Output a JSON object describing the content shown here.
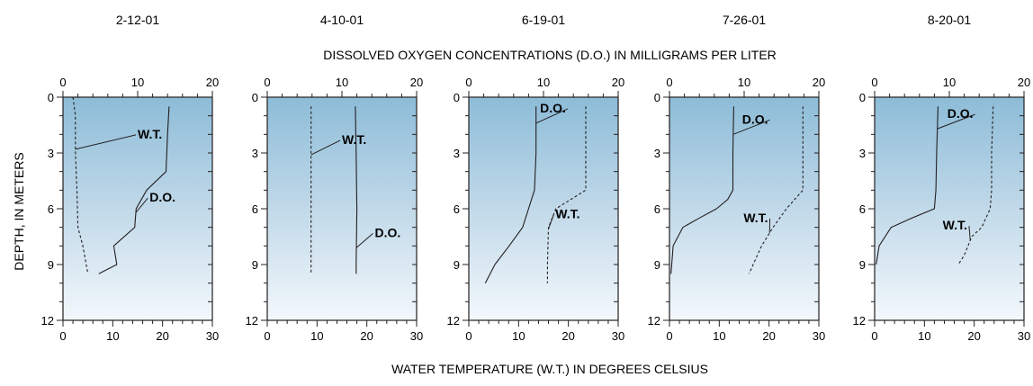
{
  "chart_data": {
    "type": "line",
    "top_axis_label": "DISSOLVED OXYGEN CONCENTRATIONS (D.O.) IN MILLIGRAMS PER LITER",
    "bottom_axis_label": "WATER TEMPERATURE (W.T.) IN DEGREES CELSIUS",
    "ylabel": "DEPTH, IN METERS",
    "do_ticks": [
      "0",
      "10",
      "20"
    ],
    "wt_ticks": [
      "0",
      "10",
      "20",
      "30"
    ],
    "depth_ticks": [
      "0",
      "3",
      "6",
      "9",
      "12"
    ],
    "do_range": [
      0,
      20
    ],
    "wt_range": [
      0,
      30
    ],
    "depth_range": [
      0,
      12
    ],
    "y_inverted": true,
    "do_series_label": "D.O.",
    "wt_series_label": "W.T.",
    "panels": [
      {
        "date": "2-12-01",
        "do": [
          [
            14.2,
            0.5
          ],
          [
            14.0,
            2
          ],
          [
            13.8,
            4
          ],
          [
            11.2,
            5
          ],
          [
            9.8,
            6
          ],
          [
            9.6,
            7
          ],
          [
            6.8,
            8
          ],
          [
            7.2,
            9
          ],
          [
            4.8,
            9.5
          ]
        ],
        "wt": [
          [
            2.0,
            0
          ],
          [
            2.5,
            1
          ],
          [
            2.5,
            3
          ],
          [
            2.8,
            5
          ],
          [
            3.0,
            7
          ],
          [
            4.0,
            8
          ],
          [
            5.0,
            9.5
          ]
        ]
      },
      {
        "date": "4-10-01",
        "do": [
          [
            11.8,
            0.5
          ],
          [
            11.9,
            3
          ],
          [
            12.0,
            6
          ],
          [
            11.9,
            9
          ],
          [
            11.9,
            9.5
          ]
        ],
        "wt": [
          [
            8.8,
            0.5
          ],
          [
            8.8,
            3
          ],
          [
            8.8,
            6
          ],
          [
            8.8,
            9
          ],
          [
            8.8,
            9.5
          ]
        ]
      },
      {
        "date": "6-19-01",
        "do": [
          [
            9.0,
            0.5
          ],
          [
            9.0,
            3
          ],
          [
            8.8,
            5
          ],
          [
            8.0,
            6
          ],
          [
            7.2,
            7
          ],
          [
            5.4,
            8
          ],
          [
            3.5,
            9
          ],
          [
            2.2,
            10
          ]
        ],
        "wt": [
          [
            23.5,
            0.5
          ],
          [
            23.5,
            3
          ],
          [
            23.5,
            5
          ],
          [
            17.5,
            6
          ],
          [
            16.0,
            7
          ],
          [
            15.8,
            9
          ],
          [
            15.8,
            10
          ]
        ]
      },
      {
        "date": "7-26-01",
        "do": [
          [
            8.6,
            0.5
          ],
          [
            8.5,
            3
          ],
          [
            8.5,
            5
          ],
          [
            7.8,
            5.5
          ],
          [
            6.3,
            6
          ],
          [
            4.0,
            6.5
          ],
          [
            1.8,
            7
          ],
          [
            0.5,
            8
          ],
          [
            0.2,
            9.5
          ]
        ],
        "wt": [
          [
            26.8,
            0.5
          ],
          [
            26.8,
            3
          ],
          [
            26.8,
            5
          ],
          [
            23.5,
            6
          ],
          [
            20.8,
            7
          ],
          [
            18.5,
            8
          ],
          [
            16.8,
            9
          ],
          [
            16.0,
            9.5
          ]
        ]
      },
      {
        "date": "8-20-01",
        "do": [
          [
            8.5,
            0.5
          ],
          [
            8.3,
            3
          ],
          [
            8.2,
            5
          ],
          [
            8.0,
            6
          ],
          [
            5.0,
            6.5
          ],
          [
            2.2,
            7
          ],
          [
            0.6,
            8
          ],
          [
            0.2,
            9
          ]
        ],
        "wt": [
          [
            23.8,
            0.5
          ],
          [
            23.5,
            3
          ],
          [
            23.5,
            5
          ],
          [
            23.2,
            6
          ],
          [
            21.5,
            7
          ],
          [
            19.5,
            7.5
          ],
          [
            18.0,
            8.5
          ],
          [
            16.8,
            9
          ]
        ]
      }
    ]
  }
}
